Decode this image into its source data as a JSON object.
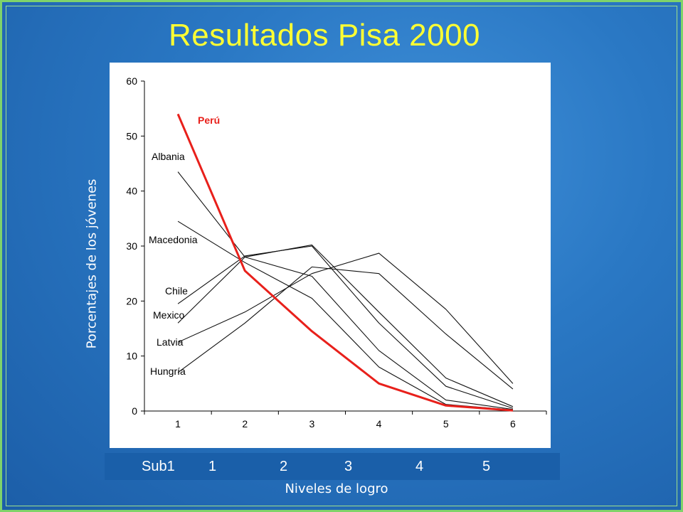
{
  "title": "Resultados Pisa 2000",
  "y_axis_title": "Porcentajes de los jóvenes",
  "x_axis_title": "Niveles de logro",
  "level_band_labels": [
    "Sub1",
    "1",
    "2",
    "3",
    "4",
    "5"
  ],
  "colors": {
    "background": "#1f63ad",
    "title": "#ffff33",
    "highlight_series": "#e8201b",
    "series": "#111111"
  },
  "chart_data": {
    "type": "line",
    "x": [
      1,
      2,
      3,
      4,
      5,
      6
    ],
    "xlim": [
      0.5,
      6.5
    ],
    "ylim": [
      0,
      60
    ],
    "yticks": [
      0,
      10,
      20,
      30,
      40,
      50,
      60
    ],
    "grid": false,
    "series": [
      {
        "name": "Perú",
        "values": [
          54,
          25.5,
          14.5,
          5,
          1,
          0.1
        ],
        "highlight": true
      },
      {
        "name": "Albania",
        "values": [
          43.5,
          28,
          24.5,
          11,
          2,
          0.3
        ]
      },
      {
        "name": "Macedonia",
        "values": [
          34.5,
          27,
          20.5,
          8,
          1.2,
          0.2
        ]
      },
      {
        "name": "Chile",
        "values": [
          19.5,
          28.2,
          30,
          16,
          4.5,
          0.5
        ]
      },
      {
        "name": "Mexico",
        "values": [
          16,
          28,
          30.2,
          18,
          6,
          0.8
        ]
      },
      {
        "name": "Latvia",
        "values": [
          12.5,
          18,
          25,
          28.7,
          18.5,
          5
        ]
      },
      {
        "name": "Hungría",
        "values": [
          7,
          16,
          26.2,
          25,
          14,
          4
        ]
      }
    ]
  }
}
